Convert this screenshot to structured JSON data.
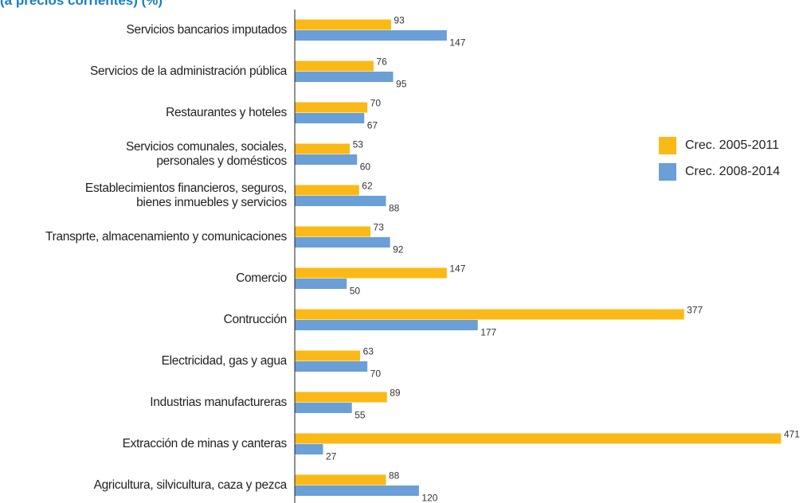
{
  "chart_data": {
    "type": "bar",
    "orientation": "horizontal",
    "title": "(a precios corrientes) (%)",
    "categories": [
      "Servicios bancarios imputados",
      "Servicios de la administración pública",
      "Restaurantes y hoteles",
      "Servicios comunales, sociales,\npersonales y domésticos",
      "Establecimientos financieros, seguros,\nbienes inmuebles y servicios",
      "Transprte, almacenamiento y comunicaciones",
      "Comercio",
      "Contrucción",
      "Electricidad, gas y agua",
      "Industrias manufactureras",
      "Extracción de minas y canteras",
      "Agricultura, silvicultura, caza y pezca"
    ],
    "series": [
      {
        "name": "Crec. 2005-2011",
        "color": "#fbb917",
        "values": [
          93,
          76,
          70,
          53,
          62,
          73,
          147,
          377,
          63,
          89,
          471,
          88
        ]
      },
      {
        "name": "Crec. 2008-2014",
        "color": "#6a9fd8",
        "values": [
          147,
          95,
          67,
          60,
          88,
          92,
          50,
          177,
          70,
          55,
          27,
          120
        ]
      }
    ],
    "legend": "right"
  }
}
